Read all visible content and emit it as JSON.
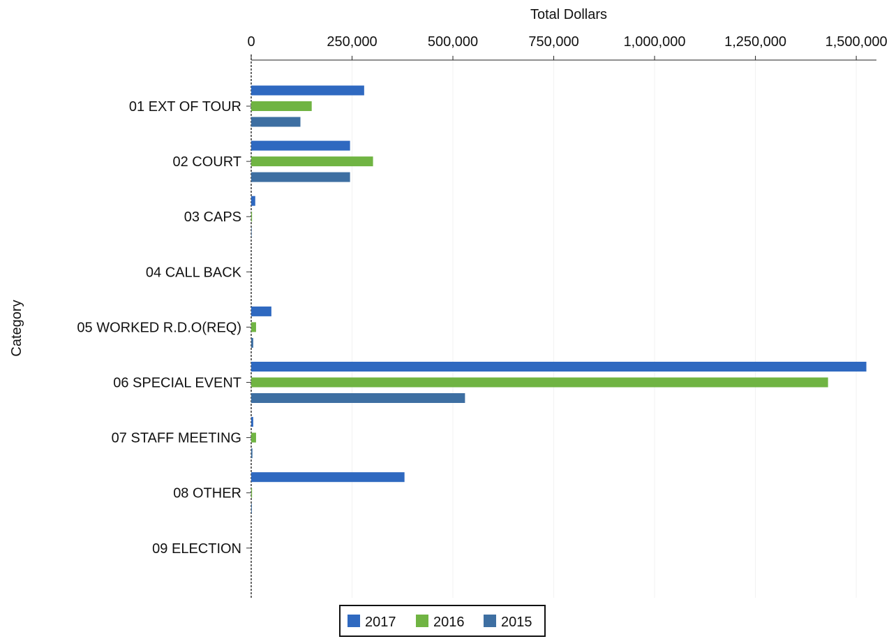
{
  "chart_data": {
    "type": "bar",
    "orientation": "horizontal",
    "title": "",
    "xlabel": "Total Dollars",
    "ylabel": "Category",
    "xlim": [
      0,
      1550000
    ],
    "x_ticks": [
      0,
      250000,
      500000,
      750000,
      1000000,
      1250000,
      1500000
    ],
    "x_tick_labels": [
      "0",
      "250,000",
      "500,000",
      "750,000",
      "1,000,000",
      "1,250,000",
      "1,500,000"
    ],
    "x_axis_position": "top",
    "grid": true,
    "legend_position": "bottom",
    "categories": [
      "01 EXT OF TOUR",
      "02 COURT",
      "03 CAPS",
      "04 CALL BACK",
      "05 WORKED R.D.O(REQ)",
      "06 SPECIAL EVENT",
      "07 STAFF MEETING",
      "08 OTHER",
      "09 ELECTION"
    ],
    "series": [
      {
        "name": "2017",
        "color": "#2f69c0",
        "values": [
          280000,
          245000,
          10000,
          0,
          50000,
          1525000,
          5000,
          380000,
          0
        ]
      },
      {
        "name": "2016",
        "color": "#70b443",
        "values": [
          150000,
          302000,
          2000,
          0,
          12000,
          1430000,
          12000,
          2000,
          0
        ]
      },
      {
        "name": "2015",
        "color": "#3e6fa2",
        "values": [
          122000,
          245000,
          1000,
          0,
          5000,
          530000,
          3000,
          1500,
          0
        ]
      }
    ]
  }
}
